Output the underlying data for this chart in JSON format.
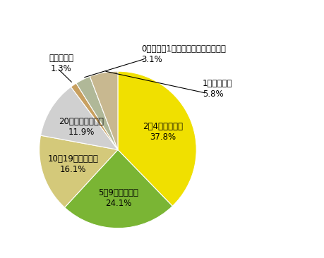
{
  "slices": [
    {
      "label": "2～4回購入した",
      "pct": "37.8%",
      "value": 37.8,
      "color": "#f0e000"
    },
    {
      "label": "5～9回購入した",
      "pct": "24.1%",
      "value": 24.1,
      "color": "#7ab534"
    },
    {
      "label": "10～19回購入した",
      "pct": "16.1%",
      "value": 16.1,
      "color": "#d4c97a"
    },
    {
      "label": "20回以上購入した",
      "pct": "11.9%",
      "value": 11.9,
      "color": "#d0d0d0"
    },
    {
      "label": "わからない",
      "pct": "1.3%",
      "value": 1.3,
      "color": "#c8a060"
    },
    {
      "label": "0回（最近1年間は購入していない）",
      "pct": "3.1%",
      "value": 3.1,
      "color": "#b0b898"
    },
    {
      "label": "1回購入した",
      "pct": "5.8%",
      "value": 5.8,
      "color": "#c8b890"
    }
  ],
  "inside_label_r": [
    0.62,
    0.62,
    0.6,
    0.55
  ],
  "start_angle": 90,
  "fontsize": 8.5
}
